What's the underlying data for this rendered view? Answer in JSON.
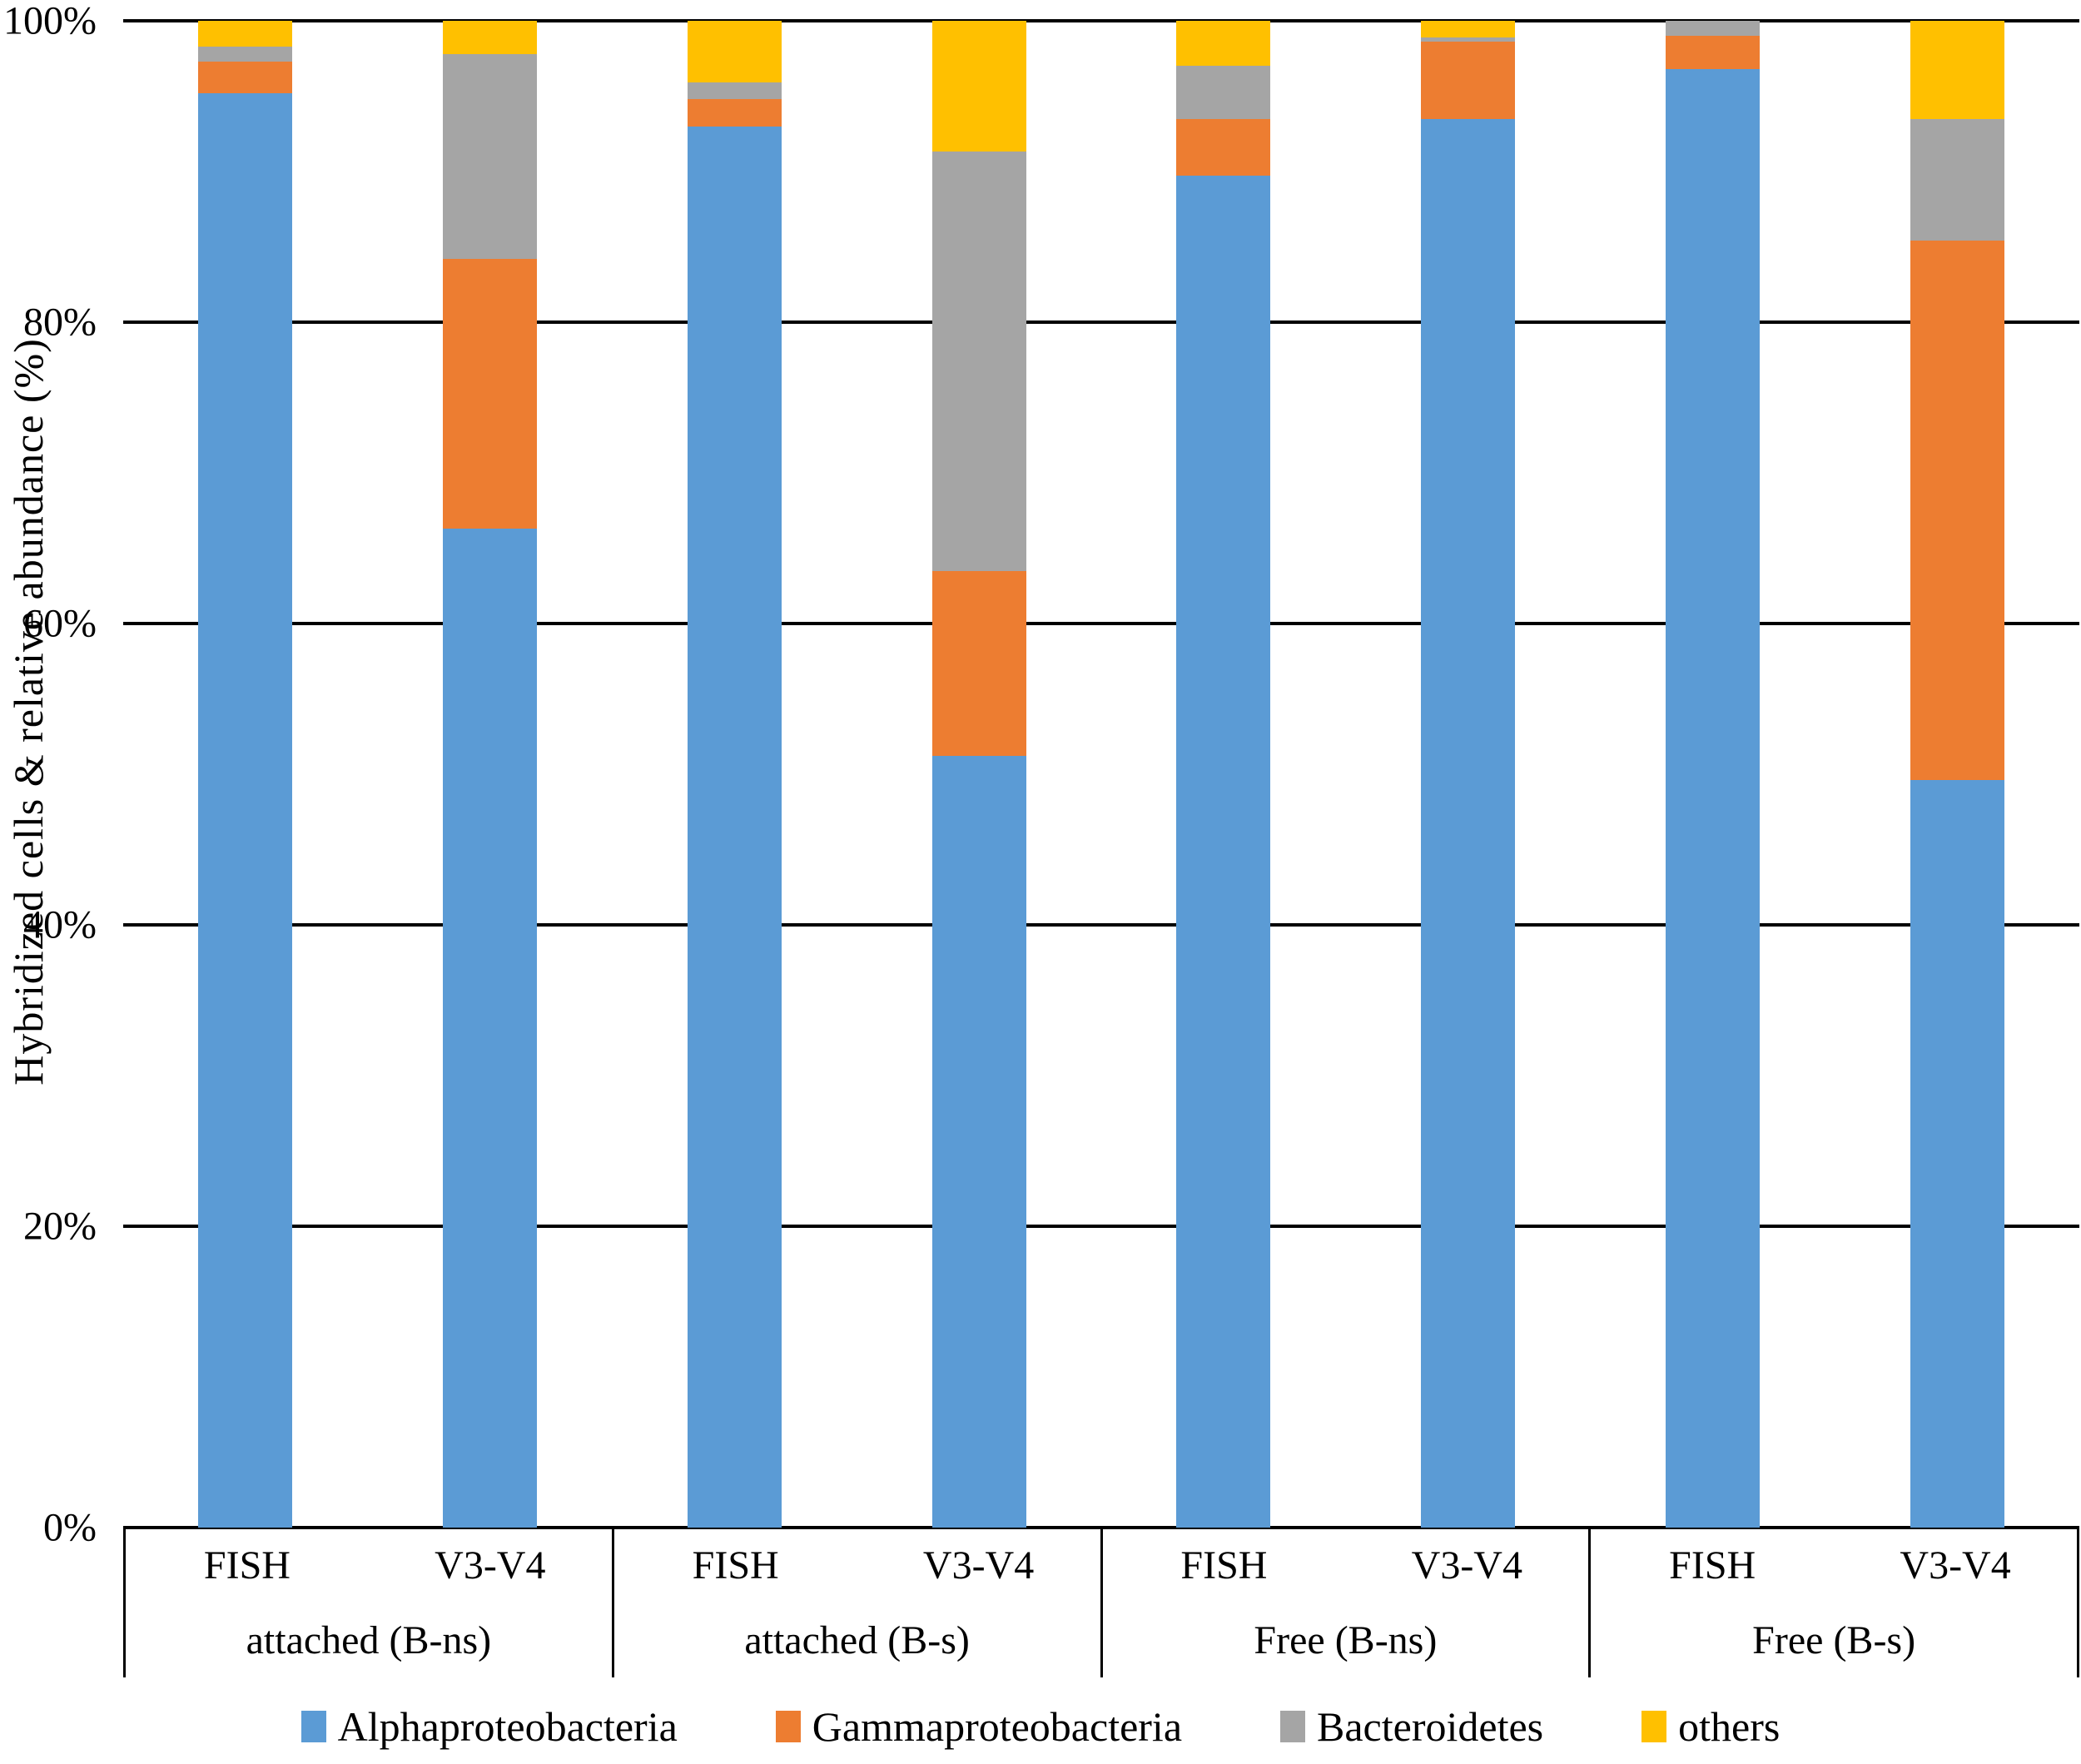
{
  "chart_data": {
    "type": "bar",
    "stacked": true,
    "orientation": "vertical",
    "ylabel": "Hybridized cells & relative abundance (%)",
    "ylim": [
      0,
      100
    ],
    "grid": true,
    "yticks": [
      {
        "label": "100%",
        "value": 100
      },
      {
        "label": "80%",
        "value": 80
      },
      {
        "label": "60%",
        "value": 60
      },
      {
        "label": "40%",
        "value": 40
      },
      {
        "label": "20%",
        "value": 20
      },
      {
        "label": "0%",
        "value": 0
      }
    ],
    "series": [
      {
        "name": "Alphaproteobacteria",
        "color": "#5B9BD5"
      },
      {
        "name": "Gammaproteobacteria",
        "color": "#ED7D31"
      },
      {
        "name": "Bacteroidetes",
        "color": "#A5A5A5"
      },
      {
        "name": "others",
        "color": "#FFC000"
      }
    ],
    "legend_position": "bottom",
    "groups": [
      {
        "label": "attached (B-ns)",
        "bars": [
          {
            "label": "FISH",
            "values": [
              95.2,
              2.1,
              1.0,
              1.7
            ]
          },
          {
            "label": "V3-V4",
            "values": [
              66.3,
              17.9,
              13.6,
              2.2
            ]
          }
        ]
      },
      {
        "label": "attached (B-s)",
        "bars": [
          {
            "label": "FISH",
            "values": [
              93.0,
              1.8,
              1.1,
              4.1
            ]
          },
          {
            "label": "V3-V4",
            "values": [
              51.2,
              12.3,
              27.8,
              8.7
            ]
          }
        ]
      },
      {
        "label": "Free (B-ns)",
        "bars": [
          {
            "label": "FISH",
            "values": [
              89.7,
              3.8,
              3.5,
              3.0
            ]
          },
          {
            "label": "V3-V4",
            "values": [
              93.5,
              5.1,
              0.3,
              1.1
            ]
          }
        ]
      },
      {
        "label": "Free (B-s)",
        "bars": [
          {
            "label": "FISH",
            "values": [
              96.8,
              2.2,
              1.0,
              0.0
            ]
          },
          {
            "label": "V3-V4",
            "values": [
              49.6,
              35.8,
              8.1,
              6.5
            ]
          }
        ]
      }
    ]
  }
}
